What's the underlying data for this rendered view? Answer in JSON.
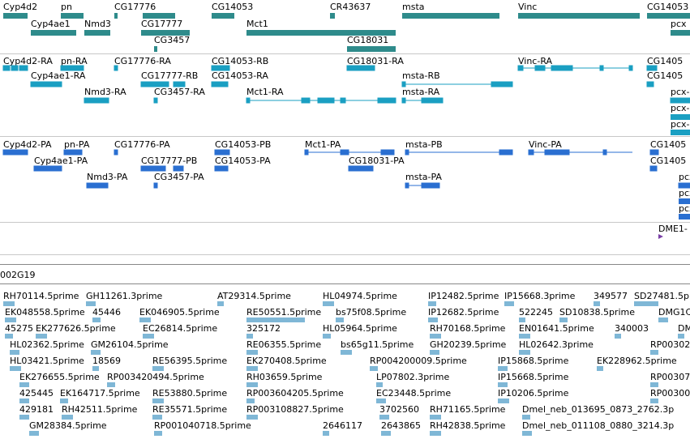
{
  "tracks": {
    "genes": {
      "color": "#2e8b8b",
      "items": [
        "Cyp4d2",
        "pn",
        "CG17776",
        "CG14053",
        "CR43637",
        "msta",
        "Vinc",
        "CG14053",
        "Cyp4ae1",
        "Nmd3",
        "CG17777",
        "Mct1",
        "pcx",
        "CG3457",
        "CG18031"
      ]
    },
    "transcripts": {
      "color": "#1a9fc2",
      "items": [
        "Cyp4d2-RA",
        "pn-RA",
        "CG17776-RA",
        "CG14053-RB",
        "CG18031-RA",
        "Vinc-RA",
        "CG1405",
        "Cyp4ae1-RA",
        "CG17777-RB",
        "CG14053-RA",
        "msta-RB",
        "CG1405",
        "Nmd3-RA",
        "CG3457-RA",
        "Mct1-RA",
        "msta-RA",
        "pcx-",
        "pcx-",
        "pcx-"
      ]
    },
    "proteins": {
      "color": "#2a6fd1",
      "items": [
        "Cyp4d2-PA",
        "pn-PA",
        "CG17776-PA",
        "CG14053-PB",
        "Mct1-PA",
        "msta-PB",
        "Vinc-PA",
        "CG1405",
        "Cyp4ae1-PA",
        "CG17777-PB",
        "CG14053-PA",
        "CG18031-PA",
        "CG1405",
        "Nmd3-PA",
        "CG3457-PA",
        "msta-PA",
        "pcx",
        "pcx",
        "pcx",
        "DME1-"
      ]
    },
    "clone_label": "002G19",
    "ests": {
      "color": "#7fb7d6",
      "items": [
        "RH70114.5prime",
        "GH11261.3prime",
        "AT29314.5prime",
        "HL04974.5prime",
        "IP12482.5prime",
        "IP15668.3prime",
        "349577",
        "SD27481.5p",
        "EK048558.5prime",
        "45446",
        "EK046905.5prime",
        "RE50551.5prime",
        "bs75f08.5prime",
        "IP12682.5prime",
        "522245",
        "SD10838.5prime",
        "DMG1C.",
        "45275",
        "EK277626.5prime",
        "EC26814.5prime",
        "325172",
        "HL05964.5prime",
        "RH70168.5prime",
        "EN01641.5prime",
        "340003",
        "DM",
        "HL02362.5prime",
        "GM26104.5prime",
        "RE06355.5prime",
        "bs65g11.5prime",
        "GH20239.5prime",
        "HL02642.3prime",
        "RP0030253",
        "HL03421.5prime",
        "18569",
        "RE56395.5prime",
        "EK270408.5prime",
        "RP004200009.5prime",
        "IP15868.5prime",
        "EK228962.5prime",
        "EK276655.5prime",
        "RP003420494.5prime",
        "RH03659.5prime",
        "LP07802.3prime",
        "IP15668.5prime",
        "RP00307888",
        "425445",
        "EK164717.5prime",
        "RE53880.5prime",
        "RP003604205.5prime",
        "EC23448.5prime",
        "IP10206.5prime",
        "RP00300302",
        "429181",
        "RH42511.5prime",
        "RE35571.5prime",
        "RP003108827.5prime",
        "3702560",
        "RH71165.5prime",
        "Dmel_neb_013695_0873_2762.3p",
        "GM28384.5prime",
        "RP001040718.5prime",
        "2646117",
        "2643865",
        "RH42838.5prime",
        "Dmel_neb_011108_0880_3214.3p"
      ]
    }
  }
}
